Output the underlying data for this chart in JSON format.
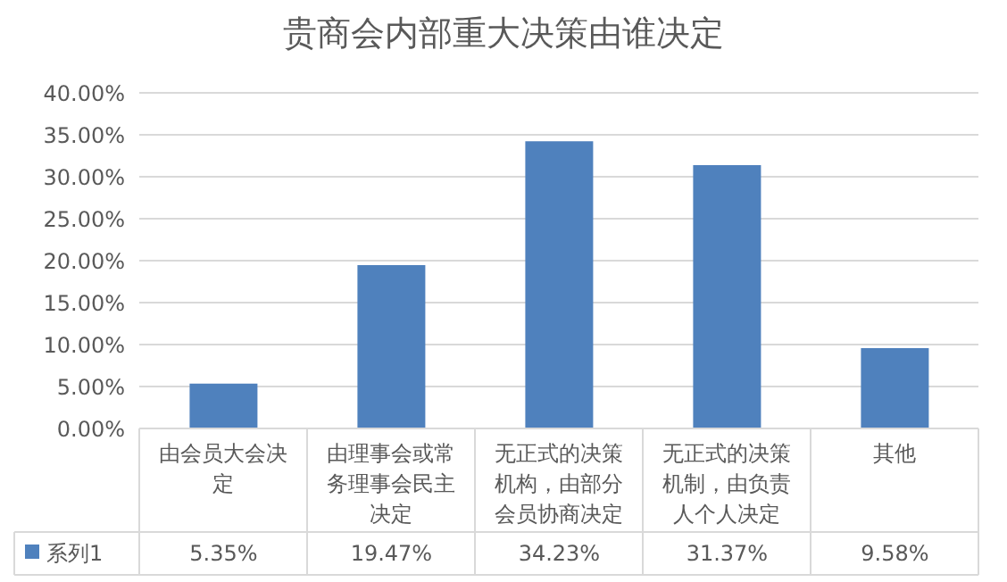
{
  "chart_data": {
    "type": "bar",
    "title": "贵商会内部重大决策由谁决定",
    "categories": [
      "由会员大会决定",
      "由理事会或常务理事会民主决定",
      "无正式的决策机构，由部分会员协商决定",
      "无正式的决策机制，由负责人个人决定",
      "其他"
    ],
    "series": [
      {
        "name": "系列1",
        "color": "#4f81bd",
        "values": [
          5.35,
          19.47,
          34.23,
          31.37,
          9.58
        ],
        "value_labels": [
          "5.35%",
          "19.47%",
          "34.23%",
          "31.37%",
          "9.58%"
        ]
      }
    ],
    "ylim": [
      0,
      40
    ],
    "yticks": [
      {
        "value": 0,
        "label": "0.00%"
      },
      {
        "value": 5,
        "label": "5.00%"
      },
      {
        "value": 10,
        "label": "10.00%"
      },
      {
        "value": 15,
        "label": "15.00%"
      },
      {
        "value": 20,
        "label": "20.00%"
      },
      {
        "value": 25,
        "label": "25.00%"
      },
      {
        "value": 30,
        "label": "30.00%"
      },
      {
        "value": 35,
        "label": "35.00%"
      },
      {
        "value": 40,
        "label": "40.00%"
      }
    ],
    "grid": "y",
    "legend": "bottom"
  }
}
